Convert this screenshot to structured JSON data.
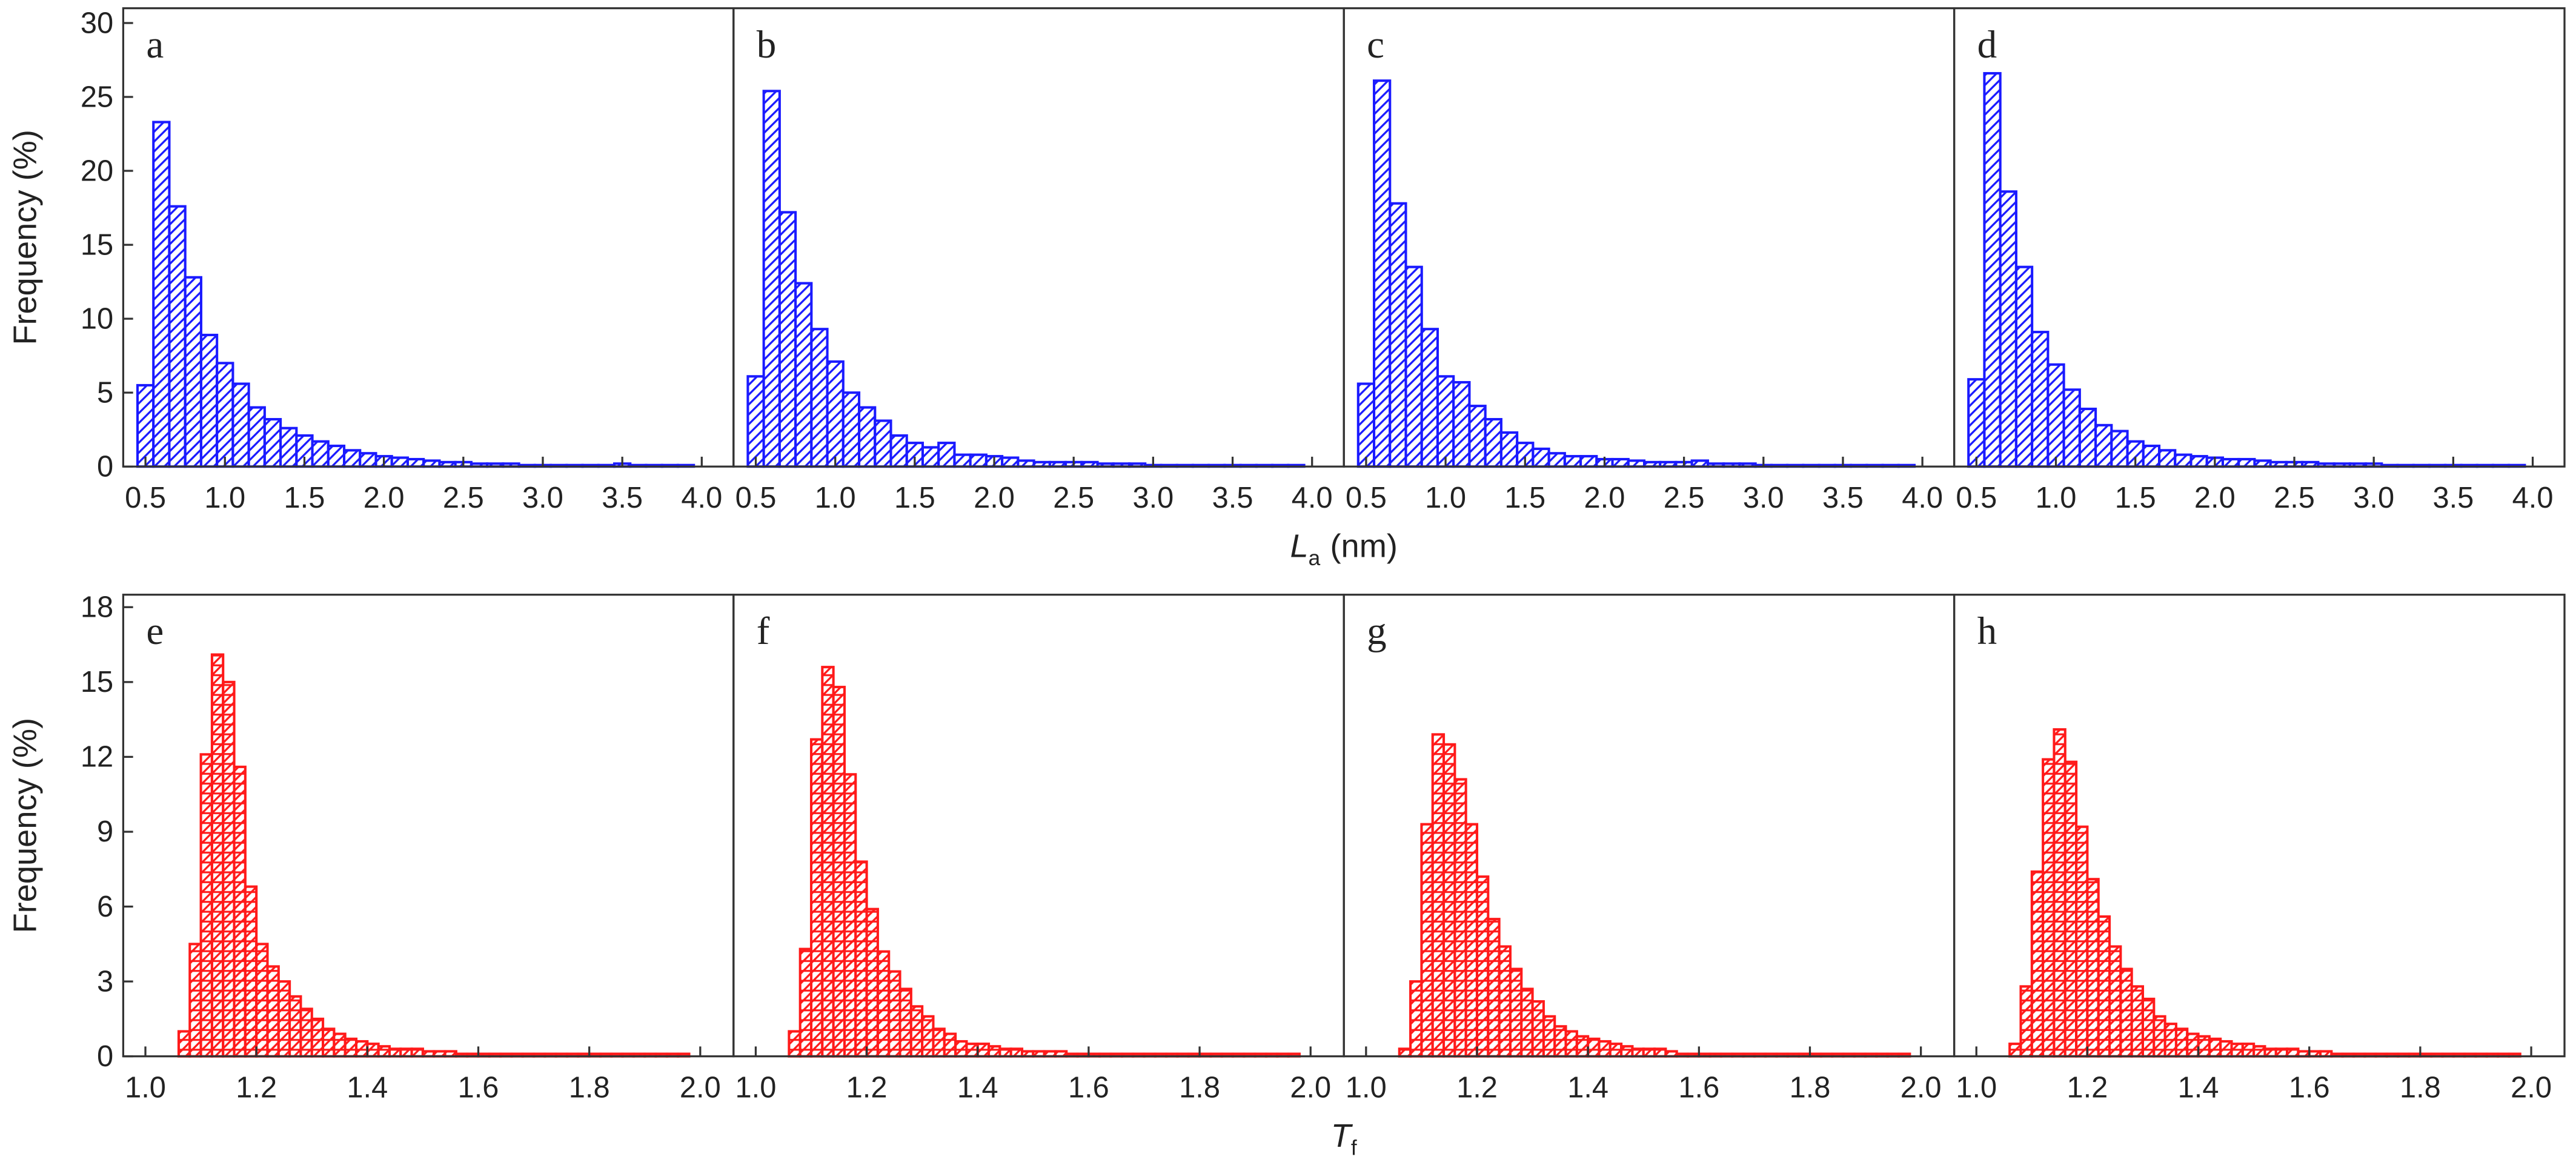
{
  "chart_data": [
    {
      "type": "histogram",
      "label": "a",
      "color": "#1a1aff",
      "hatch": "diagonal",
      "y_label": "Frequency (%)",
      "x_label": "L",
      "x_label_sub": "a",
      "x_label_unit": "(nm)",
      "bins": [
        0.45,
        0.55,
        0.65,
        0.75,
        0.85,
        0.95,
        1.05,
        1.15,
        1.25,
        1.35,
        1.45,
        1.55,
        1.65,
        1.75,
        1.85,
        1.95,
        2.05,
        2.15,
        2.25,
        2.35,
        2.45,
        2.55,
        2.65,
        2.75,
        2.85,
        2.95,
        3.05,
        3.15,
        3.25,
        3.35,
        3.45,
        3.55,
        3.65,
        3.75,
        3.85,
        3.95
      ],
      "values": [
        5.5,
        23.3,
        17.6,
        12.8,
        8.9,
        7.0,
        5.6,
        4.0,
        3.2,
        2.6,
        2.1,
        1.7,
        1.4,
        1.1,
        0.9,
        0.7,
        0.6,
        0.5,
        0.4,
        0.3,
        0.3,
        0.2,
        0.2,
        0.2,
        0.1,
        0.1,
        0.1,
        0.1,
        0.1,
        0.1,
        0.2,
        0.1,
        0.1,
        0.1,
        0.1
      ],
      "xlim": [
        0.36,
        4.2
      ],
      "ylim": [
        0,
        31
      ],
      "xticks": [
        0.5,
        {
          "value": 1,
          "label": "1.0"
        },
        1.5,
        {
          "value": 2,
          "label": "2.0"
        },
        2.5,
        {
          "value": 3,
          "label": "3.0"
        },
        3.5,
        {
          "value": 4,
          "label": "4.0"
        }
      ],
      "yticks": [
        0,
        5,
        10,
        15,
        20,
        25,
        30
      ]
    },
    {
      "type": "histogram",
      "label": "b",
      "color": "#1a1aff",
      "hatch": "diagonal",
      "bins": [
        0.45,
        0.55,
        0.65,
        0.75,
        0.85,
        0.95,
        1.05,
        1.15,
        1.25,
        1.35,
        1.45,
        1.55,
        1.65,
        1.75,
        1.85,
        1.95,
        2.05,
        2.15,
        2.25,
        2.35,
        2.45,
        2.55,
        2.65,
        2.75,
        2.85,
        2.95,
        3.05,
        3.15,
        3.25,
        3.35,
        3.45,
        3.55,
        3.65,
        3.75,
        3.85,
        3.95
      ],
      "values": [
        6.1,
        25.4,
        17.2,
        12.4,
        9.3,
        7.1,
        5.0,
        4.0,
        3.1,
        2.1,
        1.6,
        1.3,
        1.6,
        0.8,
        0.8,
        0.7,
        0.6,
        0.4,
        0.3,
        0.3,
        0.3,
        0.3,
        0.2,
        0.2,
        0.2,
        0.1,
        0.1,
        0.1,
        0.1,
        0.1,
        0.1,
        0.1,
        0.1,
        0.1,
        0.1
      ],
      "xlim": [
        0.36,
        4.2
      ],
      "ylim": [
        0,
        31
      ],
      "xticks": [
        0.5,
        {
          "value": 1,
          "label": "1.0"
        },
        1.5,
        {
          "value": 2,
          "label": "2.0"
        },
        2.5,
        {
          "value": 3,
          "label": "3.0"
        },
        3.5,
        {
          "value": 4,
          "label": "4.0"
        }
      ]
    },
    {
      "type": "histogram",
      "label": "c",
      "color": "#1a1aff",
      "hatch": "diagonal",
      "bins": [
        0.45,
        0.55,
        0.65,
        0.75,
        0.85,
        0.95,
        1.05,
        1.15,
        1.25,
        1.35,
        1.45,
        1.55,
        1.65,
        1.75,
        1.85,
        1.95,
        2.05,
        2.15,
        2.25,
        2.35,
        2.45,
        2.55,
        2.65,
        2.75,
        2.85,
        2.95,
        3.05,
        3.15,
        3.25,
        3.35,
        3.45,
        3.55,
        3.65,
        3.75,
        3.85,
        3.95
      ],
      "values": [
        5.6,
        26.1,
        17.8,
        13.5,
        9.3,
        6.1,
        5.7,
        4.1,
        3.2,
        2.3,
        1.6,
        1.2,
        0.9,
        0.7,
        0.7,
        0.5,
        0.5,
        0.4,
        0.3,
        0.3,
        0.3,
        0.4,
        0.2,
        0.2,
        0.2,
        0.1,
        0.1,
        0.1,
        0.1,
        0.1,
        0.1,
        0.1,
        0.1,
        0.1,
        0.1
      ],
      "xlim": [
        0.36,
        4.2
      ],
      "ylim": [
        0,
        31
      ],
      "xticks": [
        0.5,
        {
          "value": 1,
          "label": "1.0"
        },
        1.5,
        {
          "value": 2,
          "label": "2.0"
        },
        2.5,
        {
          "value": 3,
          "label": "3.0"
        },
        3.5,
        {
          "value": 4,
          "label": "4.0"
        }
      ]
    },
    {
      "type": "histogram",
      "label": "d",
      "color": "#1a1aff",
      "hatch": "diagonal",
      "bins": [
        0.45,
        0.55,
        0.65,
        0.75,
        0.85,
        0.95,
        1.05,
        1.15,
        1.25,
        1.35,
        1.45,
        1.55,
        1.65,
        1.75,
        1.85,
        1.95,
        2.05,
        2.15,
        2.25,
        2.35,
        2.45,
        2.55,
        2.65,
        2.75,
        2.85,
        2.95,
        3.05,
        3.15,
        3.25,
        3.35,
        3.45,
        3.55,
        3.65,
        3.75,
        3.85,
        3.95
      ],
      "values": [
        5.9,
        26.6,
        18.6,
        13.5,
        9.1,
        6.9,
        5.2,
        3.9,
        2.8,
        2.4,
        1.7,
        1.4,
        1.1,
        0.8,
        0.7,
        0.6,
        0.5,
        0.5,
        0.4,
        0.3,
        0.3,
        0.3,
        0.2,
        0.2,
        0.2,
        0.2,
        0.1,
        0.1,
        0.1,
        0.1,
        0.1,
        0.1,
        0.1,
        0.1,
        0.1
      ],
      "xlim": [
        0.36,
        4.2
      ],
      "ylim": [
        0,
        31
      ],
      "xticks": [
        0.5,
        {
          "value": 1,
          "label": "1.0"
        },
        1.5,
        {
          "value": 2,
          "label": "2.0"
        },
        2.5,
        {
          "value": 3,
          "label": "3.0"
        },
        3.5,
        {
          "value": 4,
          "label": "4.0"
        }
      ]
    },
    {
      "type": "histogram",
      "label": "e",
      "color": "#ff1a1a",
      "hatch": "cross",
      "y_label": "Frequency (%)",
      "x_label": "T",
      "x_label_sub": "f",
      "bins": [
        1.04,
        1.06,
        1.08,
        1.1,
        1.12,
        1.14,
        1.16,
        1.18,
        1.2,
        1.22,
        1.24,
        1.26,
        1.28,
        1.3,
        1.32,
        1.34,
        1.36,
        1.38,
        1.4,
        1.42,
        1.44,
        1.46,
        1.48,
        1.5,
        1.52,
        1.54,
        1.56,
        1.58,
        1.6,
        1.62,
        1.64,
        1.66,
        1.68,
        1.7,
        1.72,
        1.74,
        1.76,
        1.78,
        1.8,
        1.82,
        1.84,
        1.86,
        1.88,
        1.9,
        1.92,
        1.94,
        1.96,
        1.98
      ],
      "values": [
        0,
        1.0,
        4.5,
        12.1,
        16.1,
        15.0,
        11.6,
        6.8,
        4.5,
        3.6,
        3.0,
        2.4,
        1.9,
        1.5,
        1.1,
        0.9,
        0.7,
        0.6,
        0.5,
        0.4,
        0.3,
        0.3,
        0.3,
        0.2,
        0.2,
        0.2,
        0.1,
        0.1,
        0.1,
        0.1,
        0.1,
        0.1,
        0.1,
        0.1,
        0.1,
        0.1,
        0.1,
        0.1,
        0.1,
        0.1,
        0.1,
        0.1,
        0.1,
        0.1,
        0.1,
        0.1,
        0.1
      ],
      "xlim": [
        0.96,
        2.06
      ],
      "ylim": [
        0,
        18.5
      ],
      "xticks": [
        {
          "value": 1,
          "label": "1.0"
        },
        1.2,
        1.4,
        1.6,
        1.8,
        {
          "value": 2,
          "label": "2.0"
        }
      ],
      "yticks": [
        0,
        3,
        6,
        9,
        12,
        15,
        18
      ]
    },
    {
      "type": "histogram",
      "label": "f",
      "color": "#ff1a1a",
      "hatch": "cross",
      "bins": [
        1.04,
        1.06,
        1.08,
        1.1,
        1.12,
        1.14,
        1.16,
        1.18,
        1.2,
        1.22,
        1.24,
        1.26,
        1.28,
        1.3,
        1.32,
        1.34,
        1.36,
        1.38,
        1.4,
        1.42,
        1.44,
        1.46,
        1.48,
        1.5,
        1.52,
        1.54,
        1.56,
        1.58,
        1.6,
        1.62,
        1.64,
        1.66,
        1.68,
        1.7,
        1.72,
        1.74,
        1.76,
        1.78,
        1.8,
        1.82,
        1.84,
        1.86,
        1.88,
        1.9,
        1.92,
        1.94,
        1.96,
        1.98
      ],
      "values": [
        0,
        1.0,
        4.3,
        12.7,
        15.6,
        14.8,
        11.3,
        7.8,
        5.9,
        4.2,
        3.4,
        2.7,
        2.0,
        1.6,
        1.1,
        0.9,
        0.6,
        0.5,
        0.5,
        0.4,
        0.3,
        0.3,
        0.2,
        0.2,
        0.2,
        0.2,
        0.1,
        0.1,
        0.1,
        0.1,
        0.1,
        0.1,
        0.1,
        0.1,
        0.1,
        0.1,
        0.1,
        0.1,
        0.1,
        0.1,
        0.1,
        0.1,
        0.1,
        0.1,
        0.1,
        0.1,
        0.1
      ],
      "xlim": [
        0.96,
        2.06
      ],
      "ylim": [
        0,
        18.5
      ],
      "xticks": [
        {
          "value": 1,
          "label": "1.0"
        },
        1.2,
        1.4,
        1.6,
        1.8,
        {
          "value": 2,
          "label": "2.0"
        }
      ]
    },
    {
      "type": "histogram",
      "label": "g",
      "color": "#ff1a1a",
      "hatch": "cross",
      "bins": [
        1.04,
        1.06,
        1.08,
        1.1,
        1.12,
        1.14,
        1.16,
        1.18,
        1.2,
        1.22,
        1.24,
        1.26,
        1.28,
        1.3,
        1.32,
        1.34,
        1.36,
        1.38,
        1.4,
        1.42,
        1.44,
        1.46,
        1.48,
        1.5,
        1.52,
        1.54,
        1.56,
        1.58,
        1.6,
        1.62,
        1.64,
        1.66,
        1.68,
        1.7,
        1.72,
        1.74,
        1.76,
        1.78,
        1.8,
        1.82,
        1.84,
        1.86,
        1.88,
        1.9,
        1.92,
        1.94,
        1.96,
        1.98
      ],
      "values": [
        0,
        0.3,
        3.0,
        9.3,
        12.9,
        12.5,
        11.1,
        9.3,
        7.2,
        5.5,
        4.4,
        3.5,
        2.7,
        2.2,
        1.6,
        1.2,
        1.0,
        0.8,
        0.7,
        0.6,
        0.5,
        0.4,
        0.3,
        0.3,
        0.3,
        0.2,
        0.1,
        0.1,
        0.1,
        0.1,
        0.1,
        0.1,
        0.1,
        0.1,
        0.1,
        0.1,
        0.1,
        0.1,
        0.1,
        0.1,
        0.1,
        0.1,
        0.1,
        0.1,
        0.1,
        0.1,
        0.1
      ],
      "xlim": [
        0.96,
        2.06
      ],
      "ylim": [
        0,
        18.5
      ],
      "xticks": [
        {
          "value": 1,
          "label": "1.0"
        },
        1.2,
        1.4,
        1.6,
        1.8,
        {
          "value": 2,
          "label": "2.0"
        }
      ]
    },
    {
      "type": "histogram",
      "label": "h",
      "color": "#ff1a1a",
      "hatch": "cross",
      "bins": [
        1.04,
        1.06,
        1.08,
        1.1,
        1.12,
        1.14,
        1.16,
        1.18,
        1.2,
        1.22,
        1.24,
        1.26,
        1.28,
        1.3,
        1.32,
        1.34,
        1.36,
        1.38,
        1.4,
        1.42,
        1.44,
        1.46,
        1.48,
        1.5,
        1.52,
        1.54,
        1.56,
        1.58,
        1.6,
        1.62,
        1.64,
        1.66,
        1.68,
        1.7,
        1.72,
        1.74,
        1.76,
        1.78,
        1.8,
        1.82,
        1.84,
        1.86,
        1.88,
        1.9,
        1.92,
        1.94,
        1.96,
        1.98
      ],
      "values": [
        0,
        0.5,
        2.8,
        7.4,
        11.9,
        13.1,
        11.8,
        9.2,
        7.1,
        5.6,
        4.4,
        3.5,
        2.8,
        2.3,
        1.6,
        1.3,
        1.1,
        0.9,
        0.8,
        0.7,
        0.6,
        0.5,
        0.5,
        0.4,
        0.3,
        0.3,
        0.3,
        0.2,
        0.2,
        0.2,
        0.1,
        0.1,
        0.1,
        0.1,
        0.1,
        0.1,
        0.1,
        0.1,
        0.1,
        0.1,
        0.1,
        0.1,
        0.1,
        0.1,
        0.1,
        0.1,
        0.1
      ],
      "xlim": [
        0.96,
        2.06
      ],
      "ylim": [
        0,
        18.5
      ],
      "xticks": [
        {
          "value": 1,
          "label": "1.0"
        },
        1.2,
        1.4,
        1.6,
        1.8,
        {
          "value": 2,
          "label": "2.0"
        }
      ]
    }
  ]
}
